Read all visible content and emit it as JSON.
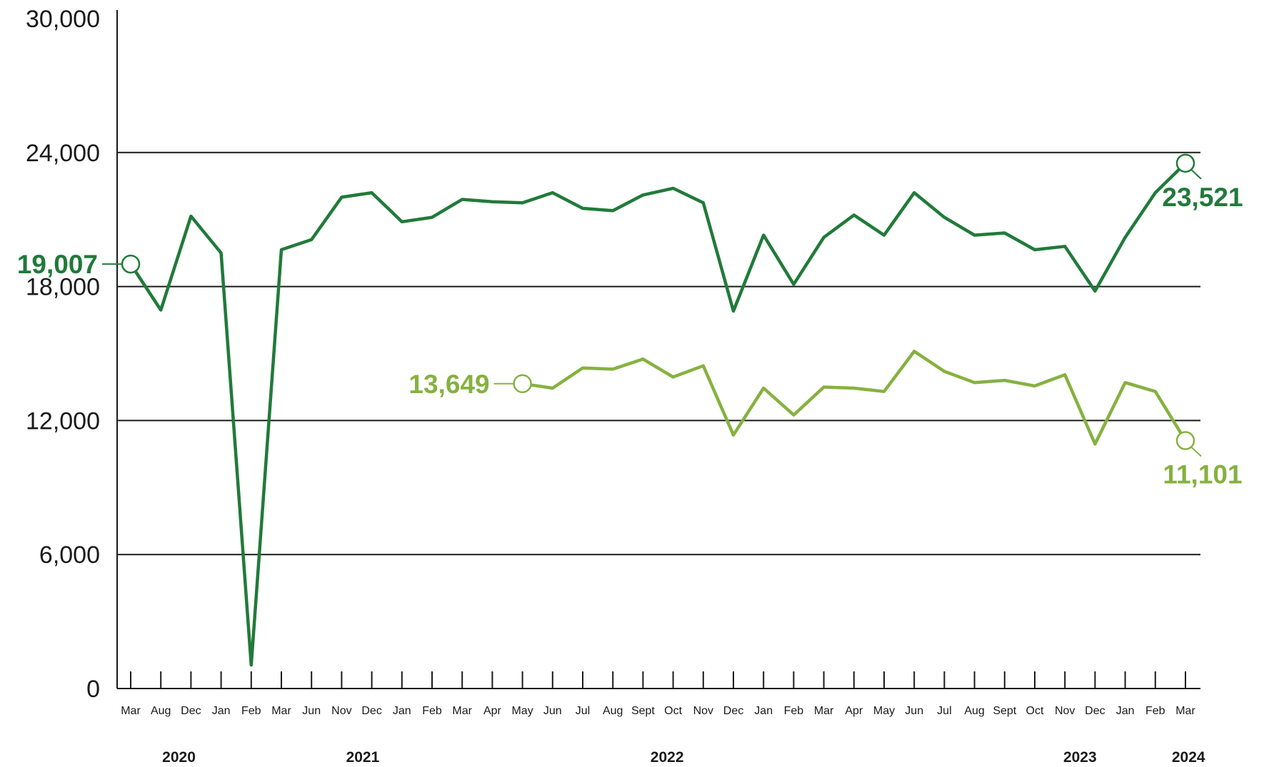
{
  "chart_data": {
    "type": "line",
    "title": "",
    "xlabel": "",
    "ylabel": "",
    "ylim": [
      0,
      30000
    ],
    "yticks": [
      "30,000",
      "24,000",
      "18,000",
      "12,000",
      "6,000",
      "0"
    ],
    "gridlines": [
      6000,
      12000,
      18000,
      24000
    ],
    "categories": [
      "Mar",
      "Aug",
      "Dec",
      "Jan",
      "Feb",
      "Mar",
      "Jun",
      "Nov",
      "Dec",
      "Jan",
      "Feb",
      "Mar",
      "Apr",
      "May",
      "Jun",
      "Jul",
      "Aug",
      "Sept",
      "Oct",
      "Nov",
      "Dec",
      "Jan",
      "Feb",
      "Mar",
      "Apr",
      "May",
      "Jun",
      "Jul",
      "Aug",
      "Sept",
      "Oct",
      "Nov",
      "Dec",
      "Jan",
      "Feb",
      "Mar"
    ],
    "years": [
      {
        "label": "2020",
        "index": 1.6
      },
      {
        "label": "2021",
        "index": 7.7
      },
      {
        "label": "2022",
        "index": 17.8
      },
      {
        "label": "2023",
        "index": 31.5
      },
      {
        "label": "2024",
        "index": 35.1
      }
    ],
    "series": [
      {
        "color": "#217A3A",
        "values": [
          19007,
          16950,
          21150,
          19500,
          1050,
          19650,
          20100,
          22000,
          22200,
          20900,
          21100,
          21900,
          21800,
          21750,
          22200,
          21500,
          21400,
          22100,
          22400,
          21750,
          16900,
          20300,
          18100,
          20200,
          21200,
          20300,
          22200,
          21100,
          20300,
          20400,
          19650,
          19800,
          17800,
          20200,
          22200,
          23521
        ],
        "start_label": "19,007",
        "end_label": "23,521",
        "start_index": 0
      },
      {
        "color": "#86B140",
        "values": [
          null,
          null,
          null,
          null,
          null,
          null,
          null,
          null,
          null,
          null,
          null,
          null,
          null,
          13649,
          13450,
          14350,
          14300,
          14750,
          13950,
          14450,
          11350,
          13450,
          12250,
          13500,
          13450,
          13300,
          15100,
          14200,
          13700,
          13800,
          13550,
          14050,
          10950,
          13700,
          13300,
          11101
        ],
        "start_label": "13,649",
        "end_label": "11,101",
        "start_index": 13
      }
    ]
  }
}
